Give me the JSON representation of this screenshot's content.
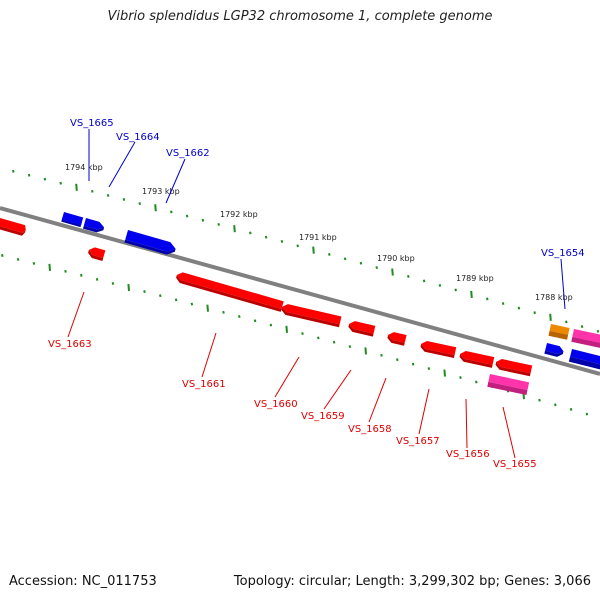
{
  "title": "Vibrio splendidus LGP32 chromosome 1, complete genome",
  "footer": {
    "accession": "Accession: NC_011753",
    "summary": "Topology: circular; Length: 3,299,302 bp; Genes: 3,066"
  },
  "colors": {
    "backbone": "#808080",
    "tick": "#1e8c1e",
    "scale_text": "#222222",
    "forward_label": "#0000cc",
    "reverse_label": "#dd0000",
    "gene_blue": "#0000ee",
    "gene_red": "#ff0000",
    "gene_pink": "#ff33aa",
    "gene_orange": "#ee8800"
  },
  "scale_labels": [
    "1794 kbp",
    "1793 kbp",
    "1792 kbp",
    "1791 kbp",
    "1790 kbp",
    "1789 kbp",
    "1788 kbp"
  ],
  "forward_labels": [
    "VS_1665",
    "VS_1664",
    "VS_1662",
    "VS_1654"
  ],
  "reverse_labels": [
    "VS_1663",
    "VS_1661",
    "VS_1660",
    "VS_1659",
    "VS_1658",
    "VS_1657",
    "VS_1656",
    "VS_1655"
  ],
  "genes": [
    {
      "id": "g-fwd-1",
      "color_key": "gene_blue",
      "strand": "forward"
    },
    {
      "id": "g-fwd-2",
      "color_key": "gene_blue",
      "strand": "forward"
    },
    {
      "id": "g-fwd-3",
      "color_key": "gene_blue",
      "strand": "forward"
    },
    {
      "id": "g-fwd-4",
      "color_key": "gene_orange",
      "strand": "forward"
    },
    {
      "id": "g-fwd-5",
      "color_key": "gene_pink",
      "strand": "forward"
    },
    {
      "id": "g-fwd-6",
      "color_key": "gene_blue",
      "strand": "forward"
    },
    {
      "id": "g-fwd-7",
      "color_key": "gene_blue",
      "strand": "forward"
    },
    {
      "id": "g-rev-1",
      "color_key": "gene_red",
      "strand": "reverse"
    },
    {
      "id": "g-rev-2",
      "color_key": "gene_red",
      "strand": "reverse"
    },
    {
      "id": "g-rev-3",
      "color_key": "gene_red",
      "strand": "reverse"
    },
    {
      "id": "g-rev-4",
      "color_key": "gene_red",
      "strand": "reverse"
    },
    {
      "id": "g-rev-5",
      "color_key": "gene_red",
      "strand": "reverse"
    },
    {
      "id": "g-rev-6",
      "color_key": "gene_red",
      "strand": "reverse"
    },
    {
      "id": "g-rev-7",
      "color_key": "gene_red",
      "strand": "reverse"
    },
    {
      "id": "g-rev-8",
      "color_key": "gene_red",
      "strand": "reverse"
    },
    {
      "id": "g-rev-9",
      "color_key": "gene_red",
      "strand": "reverse"
    },
    {
      "id": "g-rev-10",
      "color_key": "gene_red",
      "strand": "reverse"
    },
    {
      "id": "g-rev-11",
      "color_key": "gene_pink",
      "strand": "reverse"
    }
  ]
}
